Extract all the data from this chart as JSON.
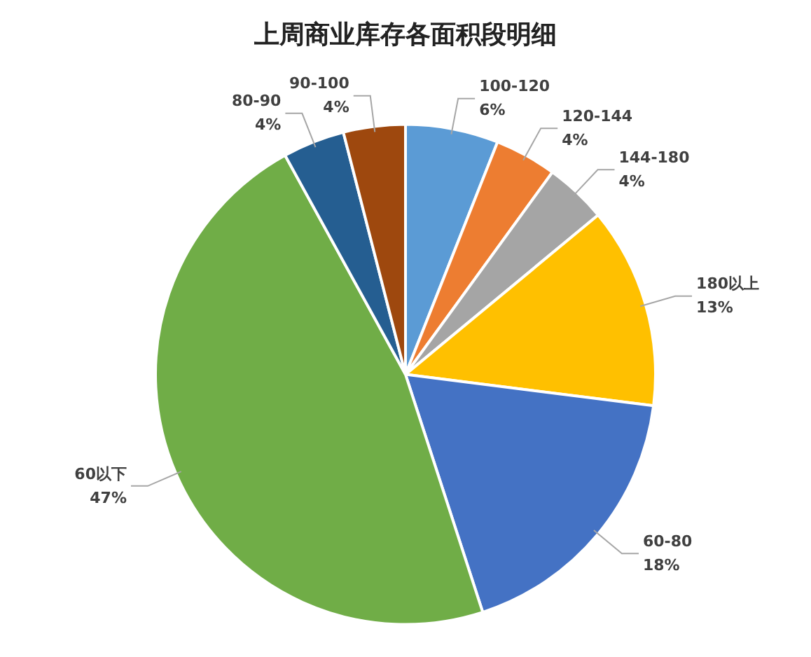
{
  "chart_data": {
    "type": "pie",
    "title": "上周商业库存各面积段明细",
    "categories": [
      "100-120",
      "120-144",
      "144-180",
      "180以上",
      "60-80",
      "60以下",
      "80-90",
      "90-100"
    ],
    "values": [
      6,
      4,
      4,
      13,
      18,
      47,
      4,
      4
    ],
    "value_labels": [
      "6%",
      "4%",
      "4%",
      "13%",
      "18%",
      "47%",
      "4%",
      "4%"
    ],
    "colors": [
      "#5b9bd5",
      "#ed7d31",
      "#a5a5a5",
      "#ffc000",
      "#4472c4",
      "#70ad47",
      "#255e91",
      "#9e480e"
    ],
    "legend": false
  }
}
